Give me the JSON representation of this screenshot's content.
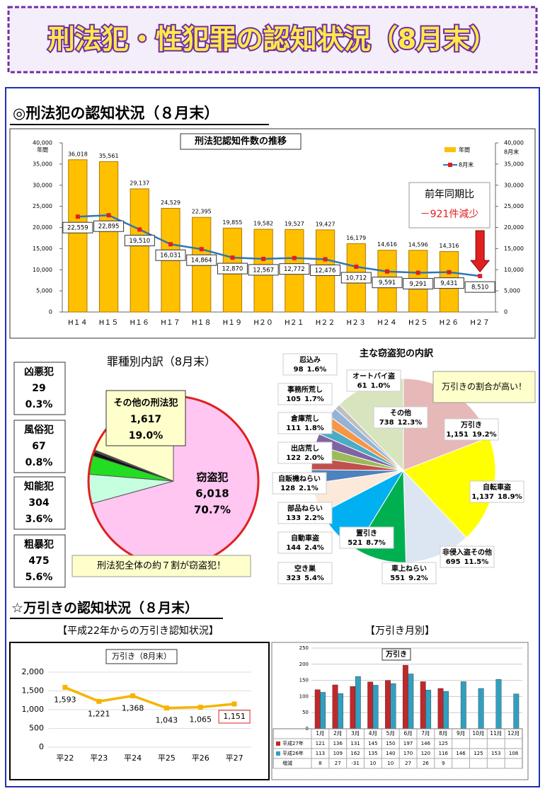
{
  "header": {
    "title": "刑法犯・性犯罪の認知状況（8月末）"
  },
  "section1": {
    "heading": "◎刑法犯の認知状況（８月末）"
  },
  "section2": {
    "heading": "☆万引きの認知状況（８月末）",
    "left_caption": "【平成22年からの万引き認知状況】",
    "right_caption": "【万引き月別】"
  },
  "chart_data": [
    {
      "type": "bar",
      "title": "刑法犯認知件数の推移",
      "categories": [
        "H１４",
        "H１５",
        "H１６",
        "H１７",
        "H１８",
        "H１９",
        "H２０",
        "H２１",
        "H２２",
        "H２３",
        "H２４",
        "H２５",
        "H２６",
        "H２７"
      ],
      "series": [
        {
          "name": "年間",
          "color": "#ffc000",
          "values": [
            36018,
            35561,
            29137,
            24529,
            22395,
            19855,
            19582,
            19527,
            19427,
            16179,
            14616,
            14596,
            14316,
            null
          ],
          "value_labels": [
            "36,018",
            "35,561",
            "29,137",
            "24,529",
            "22,395",
            "19,855",
            "19,582",
            "19,527",
            "19,427",
            "16,179",
            "14,616",
            "14,596",
            "14,316",
            null
          ]
        },
        {
          "name": "8月末",
          "type": "line",
          "axis": "y2",
          "color": "#2e75b6",
          "marker_color": "#e02020",
          "values": [
            22559,
            22895,
            19510,
            16031,
            14864,
            12870,
            12567,
            12772,
            12476,
            10712,
            9591,
            9291,
            9431,
            8510
          ],
          "value_labels": [
            "22,559",
            "22,895",
            "19,510",
            "16,031",
            "14,864",
            "12,870",
            "12,567",
            "12,772",
            "12,476",
            "10,712",
            "9,591",
            "9,291",
            "9,431",
            "8,510"
          ]
        }
      ],
      "ylabel": "年間",
      "y2label": "8月末",
      "ylim": [
        0,
        40000
      ],
      "yticks": [
        0,
        {
          "value": 5000,
          "label": "5,000"
        },
        {
          "value": 10000,
          "label": "10,000"
        },
        {
          "value": 15000,
          "label": "15,000"
        },
        {
          "value": 20000,
          "label": "20,000"
        },
        {
          "value": 25000,
          "label": "25,000"
        },
        {
          "value": 30000,
          "label": "30,000"
        },
        {
          "value": 35000,
          "label": "35,000"
        },
        {
          "value": 40000,
          "label": "40,000"
        }
      ],
      "y2lim": [
        0,
        40000
      ],
      "y2ticks": [
        0,
        {
          "value": 5000,
          "label": "5,000"
        },
        {
          "value": 10000,
          "label": "10,000"
        },
        {
          "value": 15000,
          "label": "15,000"
        },
        {
          "value": 20000,
          "label": "20,000"
        },
        {
          "value": 25000,
          "label": "25,000"
        },
        {
          "value": 30000,
          "label": "30,000"
        },
        {
          "value": 35000,
          "label": "35,000"
        },
        {
          "value": 40000,
          "label": "40,000"
        }
      ],
      "annotation": {
        "lines": [
          "前年同期比",
          "－921件減少"
        ]
      }
    },
    {
      "type": "pie",
      "title": "罪種別内訳（8月末）",
      "categories": [
        "窃盗犯",
        "粗暴犯",
        "知能犯",
        "風俗犯",
        "凶悪犯",
        "その他の刑法犯"
      ],
      "values": [
        6018,
        475,
        304,
        67,
        29,
        1617
      ],
      "value_labels": [
        "6,018",
        "475",
        "304",
        "67",
        "29",
        "1,617"
      ],
      "percents": [
        70.7,
        5.6,
        3.6,
        0.8,
        0.3,
        19.0
      ],
      "percent_labels": [
        "70.7%",
        "5.6%",
        "3.6%",
        "0.8%",
        "0.3%",
        "19.0%"
      ],
      "colors": [
        "#ffc6f2",
        "#c6ffe0",
        "#22dd22",
        "#111111",
        "#444444",
        "#ffffcc"
      ],
      "annotation": "刑法犯全体の約７割が窃盗犯！"
    },
    {
      "type": "pie",
      "title": "主な窃盗犯の内訳",
      "categories": [
        "万引き",
        "自転車盗",
        "非侵入盗その他",
        "車上ねらい",
        "置引き",
        "空き巣",
        "自動車盗",
        "部品ねらい",
        "自販機ねらい",
        "出店荒し",
        "倉庫荒し",
        "事務所荒し",
        "忍込み",
        "オートバイ盗",
        "その他"
      ],
      "values": [
        1151,
        1137,
        695,
        551,
        521,
        323,
        144,
        133,
        128,
        122,
        111,
        105,
        98,
        61,
        738
      ],
      "value_labels": [
        "1,151",
        "1,137",
        "695",
        "551",
        "521",
        "323",
        "144",
        "133",
        "128",
        "122",
        "111",
        "105",
        "98",
        "61",
        "738"
      ],
      "percents": [
        19.2,
        18.9,
        11.5,
        9.2,
        8.7,
        5.4,
        2.4,
        2.2,
        2.1,
        2.0,
        1.8,
        1.7,
        1.6,
        1.0,
        12.3
      ],
      "percent_labels": [
        "19.2%",
        "18.9%",
        "11.5%",
        "9.2%",
        "8.7%",
        "5.4%",
        "2.4%",
        "2.2%",
        "2.1%",
        "2.0%",
        "1.8%",
        "1.7%",
        "1.6%",
        "1.0%",
        "12.3%"
      ],
      "colors": [
        "#e6b8b7",
        "#ffff00",
        "#dce6f2",
        "#00b050",
        "#00b0f0",
        "#fde9d9",
        "#4f81bd",
        "#c0504d",
        "#9bbb59",
        "#8064a2",
        "#4bacc6",
        "#f79646",
        "#95b3d7",
        "#bfbfbf",
        "#d7e4bd"
      ],
      "annotation": "万引きの割合が高い！"
    },
    {
      "type": "line",
      "title": "万引き（8月末）",
      "categories": [
        "平22",
        "平23",
        "平24",
        "平25",
        "平26",
        "平27"
      ],
      "values": [
        1593,
        1221,
        1368,
        1043,
        1065,
        1151
      ],
      "value_labels": [
        "1,593",
        "1,221",
        "1,368",
        "1,043",
        "1,065",
        "1,151"
      ],
      "color": "#f5b400",
      "ylim": [
        0,
        2000
      ],
      "yticks": [
        0,
        500,
        {
          "value": 1000,
          "label": "1,000"
        },
        {
          "value": 1500,
          "label": "1,500"
        },
        {
          "value": 2000,
          "label": "2,000"
        }
      ]
    },
    {
      "type": "bar",
      "title": "万引き",
      "categories": [
        "1月",
        "2月",
        "3月",
        "4月",
        "5月",
        "6月",
        "7月",
        "8月",
        "9月",
        "10月",
        "11月",
        "12月"
      ],
      "series": [
        {
          "name": "平成27年",
          "color": "#c0282b",
          "values": [
            121,
            136,
            131,
            145,
            150,
            197,
            146,
            125,
            null,
            null,
            null,
            null
          ]
        },
        {
          "name": "平成26年",
          "color": "#31a0c0",
          "values": [
            113,
            109,
            162,
            135,
            140,
            170,
            120,
            116,
            146,
            125,
            153,
            108
          ]
        }
      ],
      "ylim": [
        0,
        250
      ],
      "yticks": [
        0,
        50,
        100,
        150,
        200,
        250
      ],
      "grid": true,
      "table": {
        "row_label": "増減",
        "values": [
          8,
          27,
          -31,
          10,
          10,
          27,
          26,
          9,
          null,
          null,
          null,
          null
        ]
      }
    }
  ]
}
